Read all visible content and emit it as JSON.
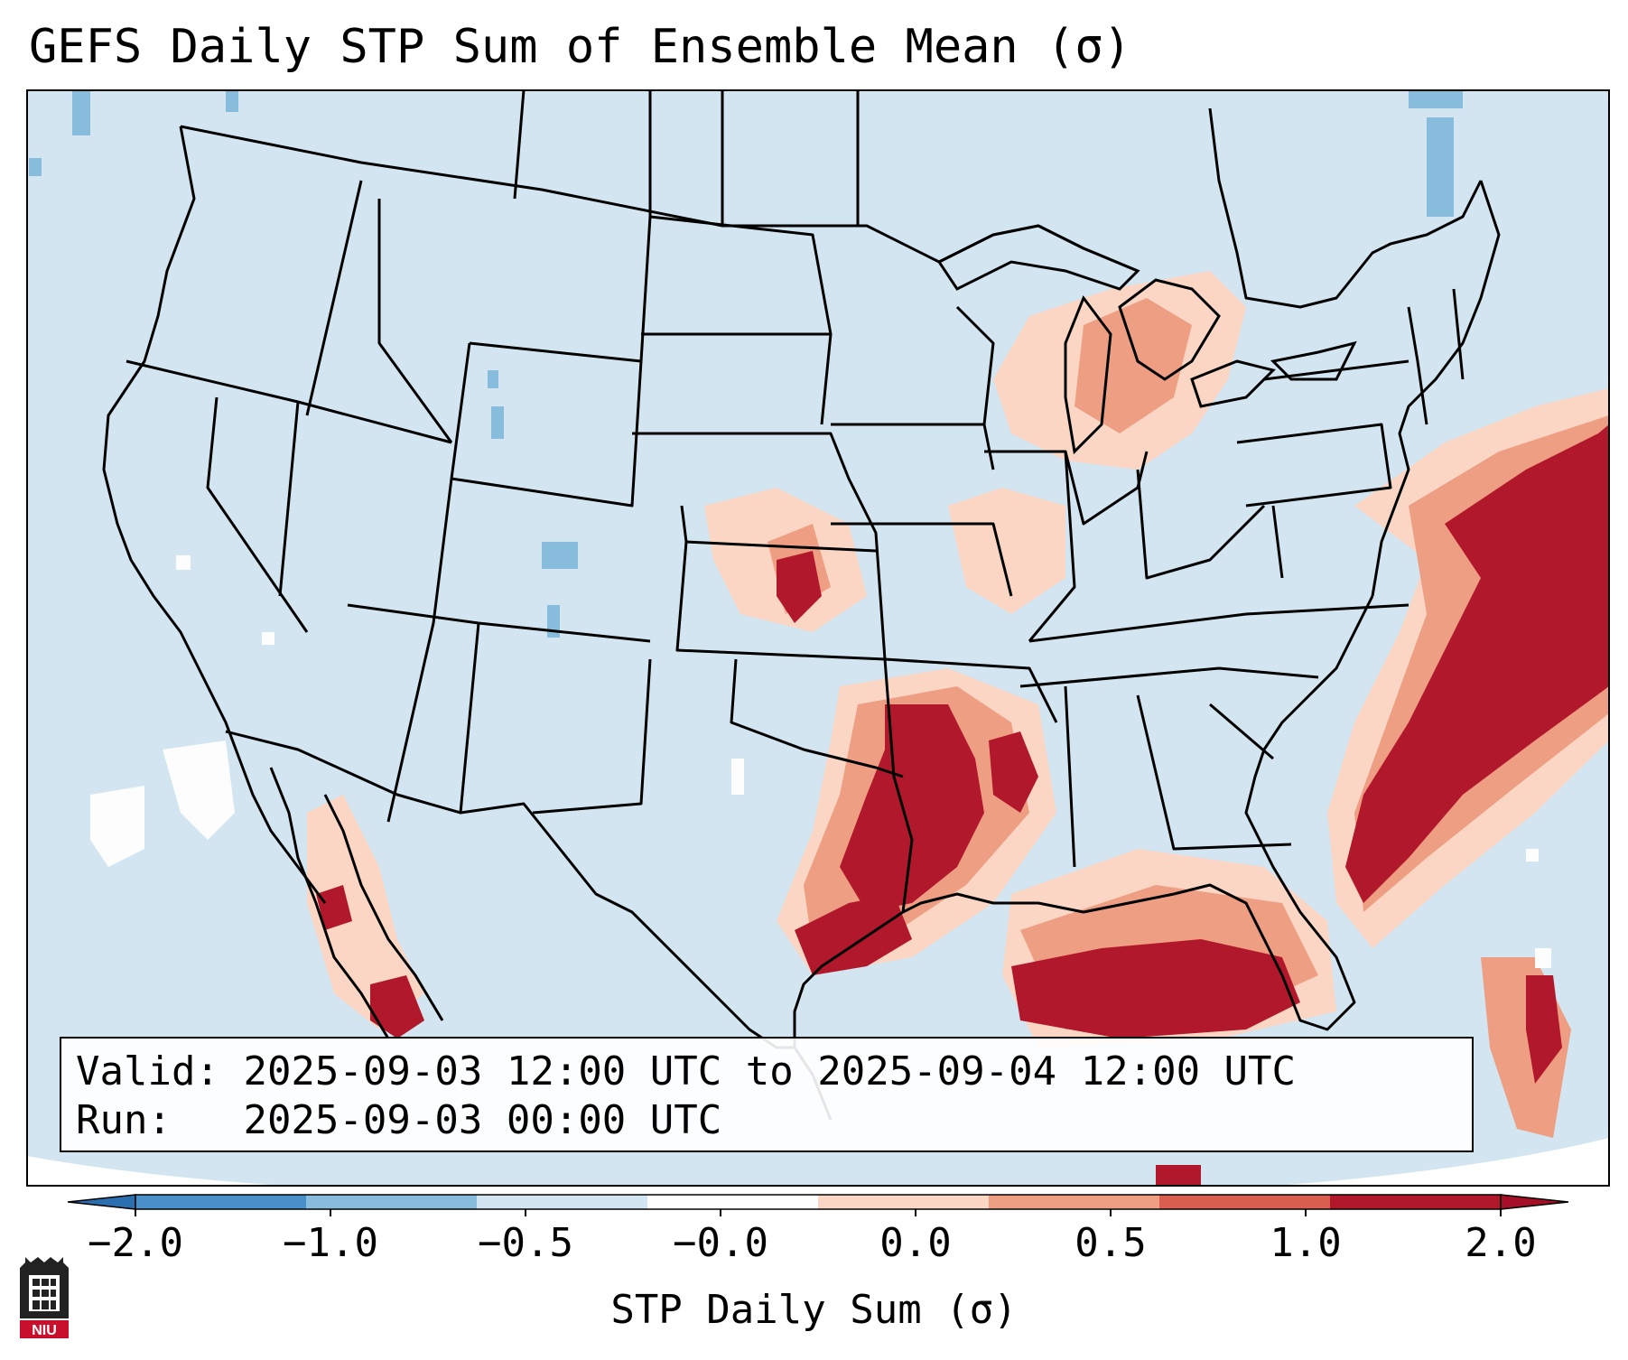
{
  "title": "GEFS Daily STP Sum of Ensemble Mean (σ)",
  "info": {
    "valid_label": "Valid:",
    "valid_value": "2025-09-03 12:00 UTC to 2025-09-04 12:00 UTC",
    "run_label": "Run:",
    "run_value": "2025-09-03 00:00 UTC"
  },
  "colorbar": {
    "label": "STP Daily Sum (σ)",
    "ticks": [
      "−2.0",
      "−1.0",
      "−0.5",
      "−0.0",
      "0.0",
      "0.5",
      "1.0",
      "2.0"
    ],
    "colors": [
      "#4a90c8",
      "#87bcdc",
      "#d2e5f0",
      "#fdfdfd",
      "#fbd6c4",
      "#ee9e82",
      "#d95e4f",
      "#b2182b"
    ],
    "extend": "both"
  },
  "map": {
    "background_color": "#d2e5f0",
    "region": "Contiguous United States, northern Mexico, Gulf of Mexico, western Atlantic",
    "features": [
      "state borders",
      "country borders",
      "coastlines",
      "Great Lakes"
    ]
  },
  "logo": {
    "text": "NIU"
  }
}
